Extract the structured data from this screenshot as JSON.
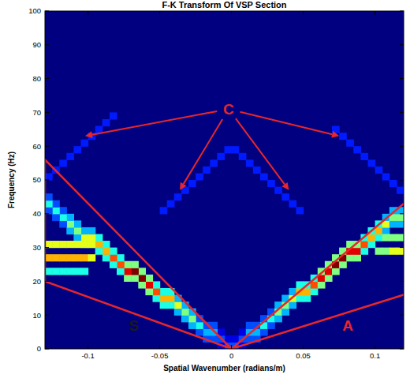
{
  "chart_data": {
    "type": "heatmap",
    "title": "F-K Transform Of VSP Section",
    "x_label": "Spatial Wavenumber (radians/m)",
    "y_label": "Frequency (Hz)",
    "xlim": [
      -0.13,
      0.12
    ],
    "ylim": [
      0,
      100
    ],
    "xticks": [
      -0.1,
      -0.05,
      0,
      0.05,
      0.1
    ],
    "yticks": [
      0,
      10,
      20,
      30,
      40,
      50,
      60,
      70,
      80,
      90,
      100
    ],
    "grid": false,
    "zlim": [
      0,
      10
    ],
    "cell_size": [
      0.005,
      2
    ],
    "cells": [
      [
        0,
        0,
        2
      ],
      [
        0,
        2,
        1
      ],
      [
        0.005,
        0,
        1
      ],
      [
        0.005,
        2,
        2
      ],
      [
        0.005,
        4,
        1
      ],
      [
        0.01,
        2,
        2
      ],
      [
        0.01,
        4,
        3
      ],
      [
        0.01,
        6,
        2
      ],
      [
        0.015,
        2,
        2
      ],
      [
        0.015,
        4,
        3
      ],
      [
        0.015,
        6,
        2
      ],
      [
        0.02,
        4,
        2
      ],
      [
        0.02,
        6,
        4
      ],
      [
        0.02,
        8,
        2
      ],
      [
        0.025,
        6,
        2
      ],
      [
        0.025,
        8,
        4
      ],
      [
        0.025,
        10,
        2
      ],
      [
        0.03,
        8,
        3
      ],
      [
        0.03,
        10,
        5
      ],
      [
        0.03,
        12,
        3
      ],
      [
        0.035,
        10,
        3
      ],
      [
        0.035,
        12,
        5
      ],
      [
        0.035,
        14,
        3
      ],
      [
        0.04,
        12,
        3
      ],
      [
        0.04,
        14,
        6
      ],
      [
        0.04,
        16,
        3
      ],
      [
        0.045,
        14,
        4
      ],
      [
        0.045,
        16,
        7
      ],
      [
        0.045,
        18,
        4
      ],
      [
        0.05,
        14,
        4
      ],
      [
        0.05,
        16,
        7
      ],
      [
        0.05,
        18,
        4
      ],
      [
        0.055,
        16,
        4
      ],
      [
        0.055,
        18,
        8
      ],
      [
        0.055,
        20,
        4
      ],
      [
        0.06,
        18,
        5
      ],
      [
        0.06,
        20,
        9
      ],
      [
        0.06,
        22,
        5
      ],
      [
        0.065,
        20,
        5
      ],
      [
        0.065,
        22,
        9
      ],
      [
        0.065,
        24,
        5
      ],
      [
        0.07,
        22,
        5
      ],
      [
        0.07,
        24,
        10
      ],
      [
        0.07,
        26,
        5
      ],
      [
        0.075,
        24,
        5
      ],
      [
        0.075,
        26,
        10
      ],
      [
        0.075,
        28,
        5
      ],
      [
        0.08,
        26,
        5
      ],
      [
        0.08,
        28,
        9
      ],
      [
        0.08,
        30,
        5
      ],
      [
        0.085,
        26,
        5
      ],
      [
        0.085,
        28,
        9
      ],
      [
        0.085,
        30,
        5
      ],
      [
        0.09,
        28,
        4
      ],
      [
        0.09,
        30,
        8
      ],
      [
        0.09,
        32,
        4
      ],
      [
        0.095,
        30,
        4
      ],
      [
        0.095,
        32,
        7
      ],
      [
        0.095,
        34,
        4
      ],
      [
        0.1,
        32,
        4
      ],
      [
        0.1,
        34,
        7
      ],
      [
        0.1,
        36,
        4
      ],
      [
        0.105,
        34,
        3
      ],
      [
        0.105,
        36,
        6
      ],
      [
        0.105,
        38,
        3
      ],
      [
        0.11,
        36,
        3
      ],
      [
        0.11,
        38,
        5
      ],
      [
        0.11,
        40,
        3
      ],
      [
        0.115,
        36,
        3
      ],
      [
        0.115,
        38,
        5
      ],
      [
        0.115,
        40,
        3
      ],
      [
        0.1,
        28,
        5
      ],
      [
        0.105,
        28,
        5
      ],
      [
        0.11,
        28,
        6
      ],
      [
        0.115,
        28,
        6
      ],
      [
        0.105,
        32,
        5
      ],
      [
        0.11,
        32,
        5
      ],
      [
        0.115,
        32,
        5
      ],
      [
        -0.005,
        0,
        2
      ],
      [
        -0.005,
        2,
        1
      ],
      [
        -0.01,
        0,
        1
      ],
      [
        -0.01,
        2,
        2
      ],
      [
        -0.01,
        4,
        1
      ],
      [
        -0.015,
        2,
        2
      ],
      [
        -0.015,
        4,
        3
      ],
      [
        -0.015,
        6,
        2
      ],
      [
        -0.02,
        2,
        2
      ],
      [
        -0.02,
        4,
        3
      ],
      [
        -0.02,
        6,
        2
      ],
      [
        -0.025,
        4,
        2
      ],
      [
        -0.025,
        6,
        4
      ],
      [
        -0.025,
        8,
        2
      ],
      [
        -0.03,
        6,
        3
      ],
      [
        -0.03,
        8,
        5
      ],
      [
        -0.03,
        10,
        3
      ],
      [
        -0.035,
        8,
        3
      ],
      [
        -0.035,
        10,
        5
      ],
      [
        -0.035,
        12,
        3
      ],
      [
        -0.04,
        10,
        3
      ],
      [
        -0.04,
        12,
        6
      ],
      [
        -0.04,
        14,
        3
      ],
      [
        -0.045,
        12,
        4
      ],
      [
        -0.045,
        14,
        7
      ],
      [
        -0.045,
        16,
        4
      ],
      [
        -0.05,
        12,
        4
      ],
      [
        -0.05,
        14,
        7
      ],
      [
        -0.05,
        16,
        4
      ],
      [
        -0.055,
        14,
        4
      ],
      [
        -0.055,
        16,
        8
      ],
      [
        -0.055,
        18,
        4
      ],
      [
        -0.06,
        16,
        5
      ],
      [
        -0.06,
        18,
        9
      ],
      [
        -0.06,
        20,
        5
      ],
      [
        -0.065,
        18,
        5
      ],
      [
        -0.065,
        20,
        10
      ],
      [
        -0.065,
        22,
        5
      ],
      [
        -0.07,
        20,
        5
      ],
      [
        -0.07,
        22,
        10
      ],
      [
        -0.07,
        24,
        5
      ],
      [
        -0.075,
        20,
        5
      ],
      [
        -0.075,
        22,
        9
      ],
      [
        -0.075,
        24,
        5
      ],
      [
        -0.08,
        22,
        4
      ],
      [
        -0.08,
        24,
        8
      ],
      [
        -0.08,
        26,
        4
      ],
      [
        -0.085,
        24,
        4
      ],
      [
        -0.085,
        26,
        8
      ],
      [
        -0.085,
        28,
        4
      ],
      [
        -0.09,
        26,
        4
      ],
      [
        -0.09,
        28,
        7
      ],
      [
        -0.09,
        30,
        4
      ],
      [
        -0.095,
        28,
        4
      ],
      [
        -0.095,
        30,
        7
      ],
      [
        -0.095,
        32,
        4
      ],
      [
        -0.1,
        30,
        3
      ],
      [
        -0.1,
        32,
        6
      ],
      [
        -0.1,
        34,
        3
      ],
      [
        -0.105,
        30,
        3
      ],
      [
        -0.105,
        32,
        6
      ],
      [
        -0.105,
        34,
        3
      ],
      [
        -0.11,
        32,
        3
      ],
      [
        -0.11,
        34,
        5
      ],
      [
        -0.11,
        36,
        3
      ],
      [
        -0.115,
        34,
        3
      ],
      [
        -0.115,
        36,
        5
      ],
      [
        -0.115,
        38,
        3
      ],
      [
        -0.12,
        36,
        2
      ],
      [
        -0.12,
        38,
        4
      ],
      [
        -0.12,
        40,
        2
      ],
      [
        -0.125,
        38,
        2
      ],
      [
        -0.125,
        40,
        4
      ],
      [
        -0.125,
        42,
        2
      ],
      [
        -0.13,
        40,
        2
      ],
      [
        -0.13,
        42,
        4
      ],
      [
        -0.13,
        44,
        2
      ],
      [
        -0.13,
        30,
        6
      ],
      [
        -0.125,
        30,
        6
      ],
      [
        -0.12,
        30,
        6
      ],
      [
        -0.115,
        30,
        6
      ],
      [
        -0.11,
        30,
        6
      ],
      [
        -0.105,
        30,
        6
      ],
      [
        -0.1,
        30,
        6
      ],
      [
        -0.13,
        26,
        7
      ],
      [
        -0.125,
        26,
        7
      ],
      [
        -0.12,
        26,
        7
      ],
      [
        -0.115,
        26,
        7
      ],
      [
        -0.11,
        26,
        7
      ],
      [
        -0.105,
        26,
        7
      ],
      [
        -0.1,
        26,
        6
      ],
      [
        -0.13,
        22,
        4
      ],
      [
        -0.125,
        22,
        4
      ],
      [
        -0.12,
        22,
        4
      ],
      [
        -0.115,
        22,
        4
      ],
      [
        -0.11,
        22,
        4
      ],
      [
        -0.105,
        22,
        4
      ],
      [
        -0.13,
        50,
        1.5
      ],
      [
        -0.125,
        52,
        1.5
      ],
      [
        -0.12,
        54,
        1.5
      ],
      [
        -0.115,
        56,
        1.5
      ],
      [
        -0.11,
        58,
        1.5
      ],
      [
        -0.105,
        60,
        1.5
      ],
      [
        -0.1,
        62,
        1.5
      ],
      [
        -0.095,
        64,
        1.5
      ],
      [
        -0.09,
        66,
        1.5
      ],
      [
        -0.085,
        68,
        1.5
      ],
      [
        0.115,
        46,
        1.5
      ],
      [
        0.11,
        48,
        1.5
      ],
      [
        0.105,
        50,
        1.5
      ],
      [
        0.1,
        52,
        1.5
      ],
      [
        0.095,
        54,
        1.5
      ],
      [
        0.09,
        56,
        1.5
      ],
      [
        0.085,
        58,
        1.5
      ],
      [
        0.08,
        60,
        1.5
      ],
      [
        0.075,
        62,
        1.5
      ],
      [
        0.07,
        64,
        1.5
      ],
      [
        -0.005,
        58,
        1.5
      ],
      [
        -0.01,
        56,
        1.5
      ],
      [
        -0.015,
        54,
        1.5
      ],
      [
        -0.02,
        52,
        1.5
      ],
      [
        -0.025,
        50,
        1.5
      ],
      [
        -0.03,
        48,
        1.5
      ],
      [
        -0.035,
        46,
        1.5
      ],
      [
        -0.04,
        44,
        1.5
      ],
      [
        -0.045,
        42,
        1.5
      ],
      [
        -0.05,
        40,
        1.5
      ],
      [
        0,
        58,
        1.5
      ],
      [
        0.005,
        56,
        1.5
      ],
      [
        0.01,
        54,
        1.5
      ],
      [
        0.015,
        52,
        1.5
      ],
      [
        0.02,
        50,
        1.5
      ],
      [
        0.025,
        48,
        1.5
      ],
      [
        0.03,
        46,
        1.5
      ],
      [
        0.035,
        44,
        1.5
      ],
      [
        0.04,
        42,
        1.5
      ],
      [
        0.045,
        40,
        1.5
      ]
    ],
    "regions": [
      {
        "color": "#e8262b",
        "points": [
          [
            0,
            0
          ],
          [
            -0.13,
            56
          ],
          [
            -0.13,
            20
          ],
          [
            0,
            0
          ]
        ]
      },
      {
        "color": "#e8262b",
        "points": [
          [
            0.12,
            43
          ],
          [
            0,
            0
          ],
          [
            0.12,
            16
          ]
        ]
      }
    ],
    "annotations": [
      {
        "text": "S",
        "x": -0.068,
        "y": 7,
        "color": "#1a1a1a"
      },
      {
        "text": "A",
        "x": 0.081,
        "y": 7,
        "color": "#e8262b"
      },
      {
        "text": "C",
        "x": -0.002,
        "y": 71,
        "color": "#e8262b",
        "arrows": [
          [
            -0.102,
            63
          ],
          [
            -0.036,
            47
          ],
          [
            0.04,
            47
          ],
          [
            0.075,
            63
          ]
        ]
      }
    ]
  }
}
